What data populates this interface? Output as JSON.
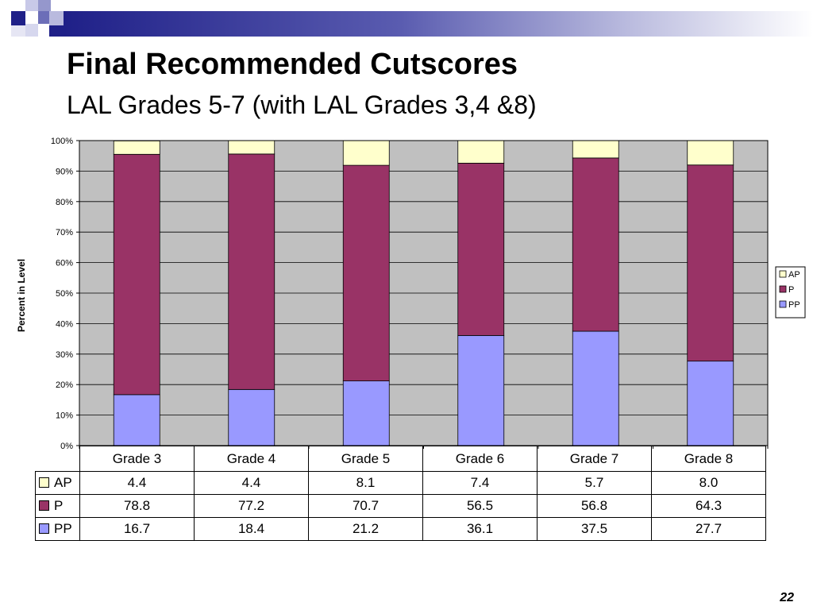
{
  "slide": {
    "title": "Final Recommended Cutscores",
    "subtitle": "LAL Grades 5-7 (with LAL Grades 3,4 &8)",
    "page_number": "22"
  },
  "colors": {
    "AP": "#ffffcc",
    "P": "#993366",
    "PP": "#9999ff",
    "plot_bg": "#c0c0c0",
    "header_dark": "#1f2088"
  },
  "chart_data": {
    "type": "bar",
    "stacked": true,
    "categories": [
      "Grade 3",
      "Grade 4",
      "Grade 5",
      "Grade 6",
      "Grade 7",
      "Grade 8"
    ],
    "series": [
      {
        "name": "PP",
        "values": [
          16.7,
          18.4,
          21.2,
          36.1,
          37.5,
          27.7
        ]
      },
      {
        "name": "P",
        "values": [
          78.8,
          77.2,
          70.7,
          56.5,
          56.8,
          64.3
        ]
      },
      {
        "name": "AP",
        "values": [
          4.4,
          4.4,
          8.1,
          7.4,
          5.7,
          8.0
        ]
      }
    ],
    "ylabel": "Percent in Level",
    "ylim": [
      0,
      100
    ],
    "yticks": [
      "0%",
      "10%",
      "20%",
      "30%",
      "40%",
      "50%",
      "60%",
      "70%",
      "80%",
      "90%",
      "100%"
    ],
    "legend": {
      "position": "right",
      "order": [
        "AP",
        "P",
        "PP"
      ]
    },
    "grid": true,
    "data_table": {
      "rows": [
        {
          "label": "AP",
          "values": [
            "4.4",
            "4.4",
            "8.1",
            "7.4",
            "5.7",
            "8.0"
          ]
        },
        {
          "label": "P",
          "values": [
            "78.8",
            "77.2",
            "70.7",
            "56.5",
            "56.8",
            "64.3"
          ]
        },
        {
          "label": "PP",
          "values": [
            "16.7",
            "18.4",
            "21.2",
            "36.1",
            "37.5",
            "27.7"
          ]
        }
      ]
    }
  }
}
